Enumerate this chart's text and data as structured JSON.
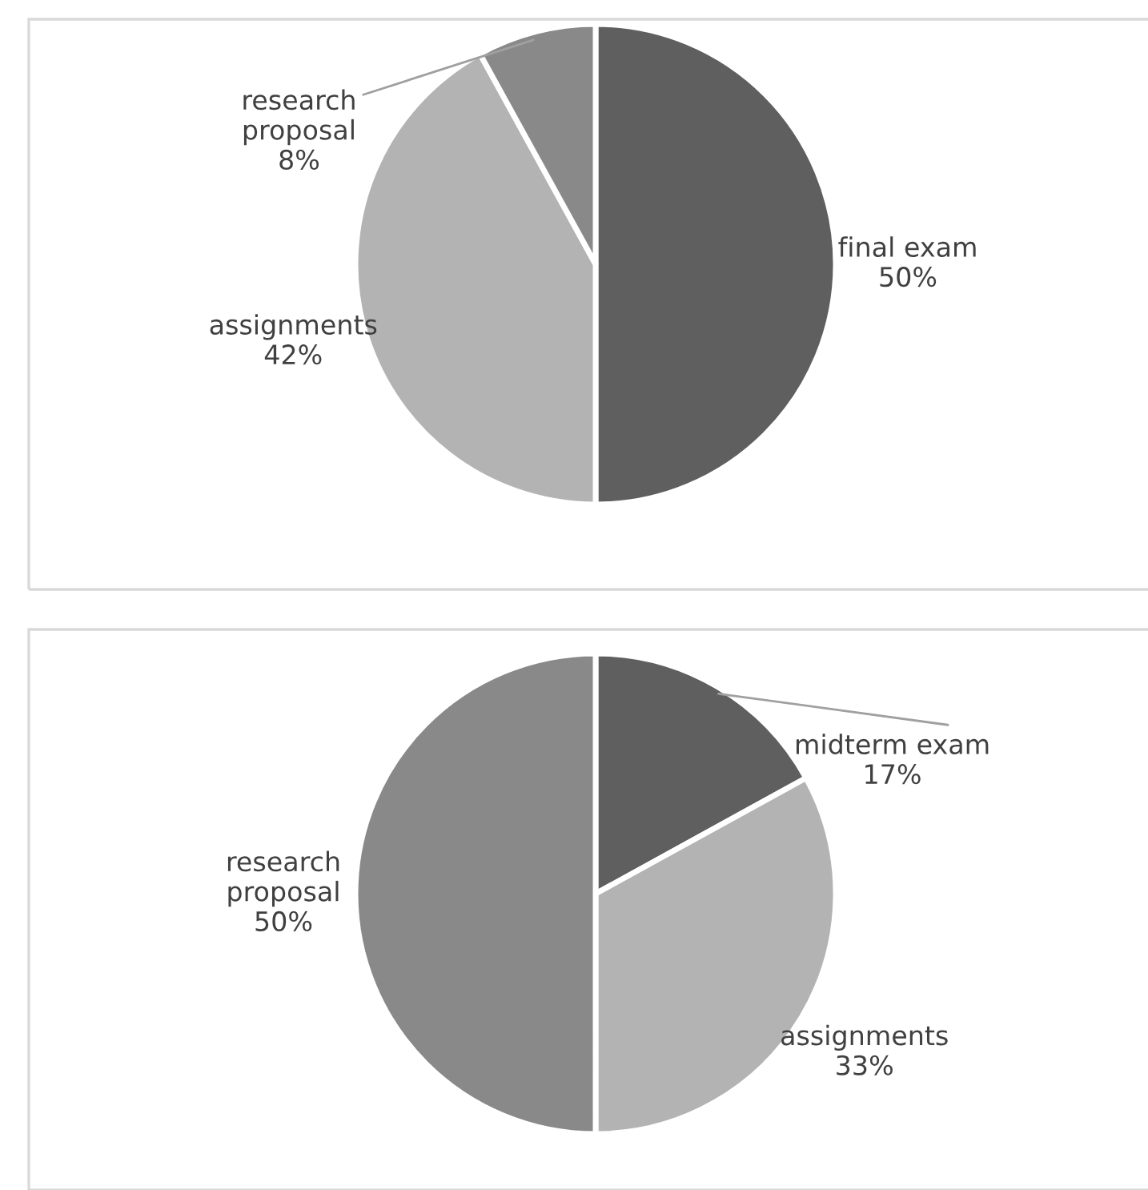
{
  "chart_data": [
    {
      "type": "pie",
      "categories": [
        "final exam",
        "assignments",
        "research proposal"
      ],
      "values": [
        50,
        42,
        8
      ],
      "colors": [
        "#5f5f5f",
        "#b3b3b3",
        "#898989"
      ],
      "value_labels": [
        "50%",
        "42%",
        "8%"
      ]
    },
    {
      "type": "pie",
      "categories": [
        "midterm exam",
        "assignments",
        "research proposal"
      ],
      "values": [
        17,
        33,
        50
      ],
      "colors": [
        "#5f5f5f",
        "#b3b3b3",
        "#898989"
      ],
      "value_labels": [
        "17%",
        "33%",
        "50%"
      ]
    }
  ]
}
